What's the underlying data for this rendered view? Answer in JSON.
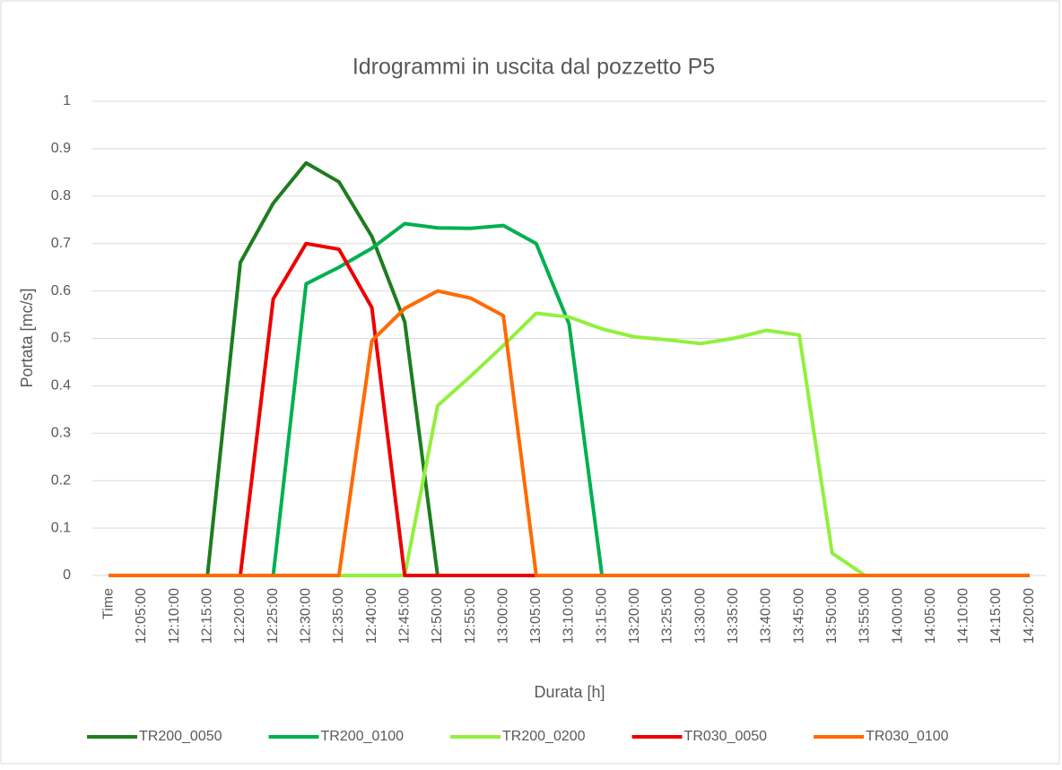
{
  "chart_data": {
    "type": "line",
    "title": "Idrogrammi in uscita dal pozzetto P5",
    "x_label": "Durata [h]",
    "y_label": "Portata [mc/s]",
    "categories": [
      "Time",
      "12:05:00",
      "12:10:00",
      "12:15:00",
      "12:20:00",
      "12:25:00",
      "12:30:00",
      "12:35:00",
      "12:40:00",
      "12:45:00",
      "12:50:00",
      "12:55:00",
      "13:00:00",
      "13:05:00",
      "13:10:00",
      "13:15:00",
      "13:20:00",
      "13:25:00",
      "13:30:00",
      "13:35:00",
      "13:40:00",
      "13:45:00",
      "13:50:00",
      "13:55:00",
      "14:00:00",
      "14:05:00",
      "14:10:00",
      "14:15:00",
      "14:20:00"
    ],
    "series": [
      {
        "name": "TR200_0050",
        "color": "#1e7d1e",
        "values": [
          0,
          0,
          0,
          0,
          0.66,
          0.785,
          0.87,
          0.83,
          0.715,
          0.535,
          0,
          0,
          0,
          0,
          0,
          0,
          0,
          0,
          0,
          0,
          0,
          0,
          0,
          0,
          0,
          0,
          0,
          0,
          0
        ]
      },
      {
        "name": "TR200_0100",
        "color": "#00b050",
        "values": [
          0,
          0,
          0,
          0,
          0,
          0,
          0.615,
          0.65,
          0.69,
          0.742,
          0.733,
          0.732,
          0.738,
          0.7,
          0.53,
          0,
          0,
          0,
          0,
          0,
          0,
          0,
          0,
          0,
          0,
          0,
          0,
          0,
          0
        ]
      },
      {
        "name": "TR200_0200",
        "color": "#92f03c",
        "values": [
          0,
          0,
          0,
          0,
          0,
          0,
          0,
          0,
          0,
          0,
          0.358,
          0.42,
          0.485,
          0.553,
          0.545,
          0.52,
          0.503,
          0.497,
          0.489,
          0.5,
          0.517,
          0.507,
          0.047,
          0,
          0,
          0,
          0,
          0,
          0
        ]
      },
      {
        "name": "TR030_0050",
        "color": "#ee0000",
        "values": [
          0,
          0,
          0,
          0,
          0,
          0.583,
          0.7,
          0.688,
          0.565,
          0,
          0,
          0,
          0,
          0,
          0,
          0,
          0,
          0,
          0,
          0,
          0,
          0,
          0,
          0,
          0,
          0,
          0,
          0,
          0
        ]
      },
      {
        "name": "TR030_0100",
        "color": "#ff6a00",
        "values": [
          0,
          0,
          0,
          0,
          0,
          0,
          0,
          0,
          0.495,
          0.563,
          0.6,
          0.585,
          0.548,
          0,
          0,
          0,
          0,
          0,
          0,
          0,
          0,
          0,
          0,
          0,
          0,
          0,
          0,
          0,
          0
        ]
      }
    ],
    "ylim": [
      0,
      1
    ],
    "yticks": [
      0,
      0.1,
      0.2,
      0.3,
      0.4,
      0.5,
      0.6,
      0.7,
      0.8,
      0.9,
      1
    ],
    "grid": true,
    "legend": "bottom"
  }
}
